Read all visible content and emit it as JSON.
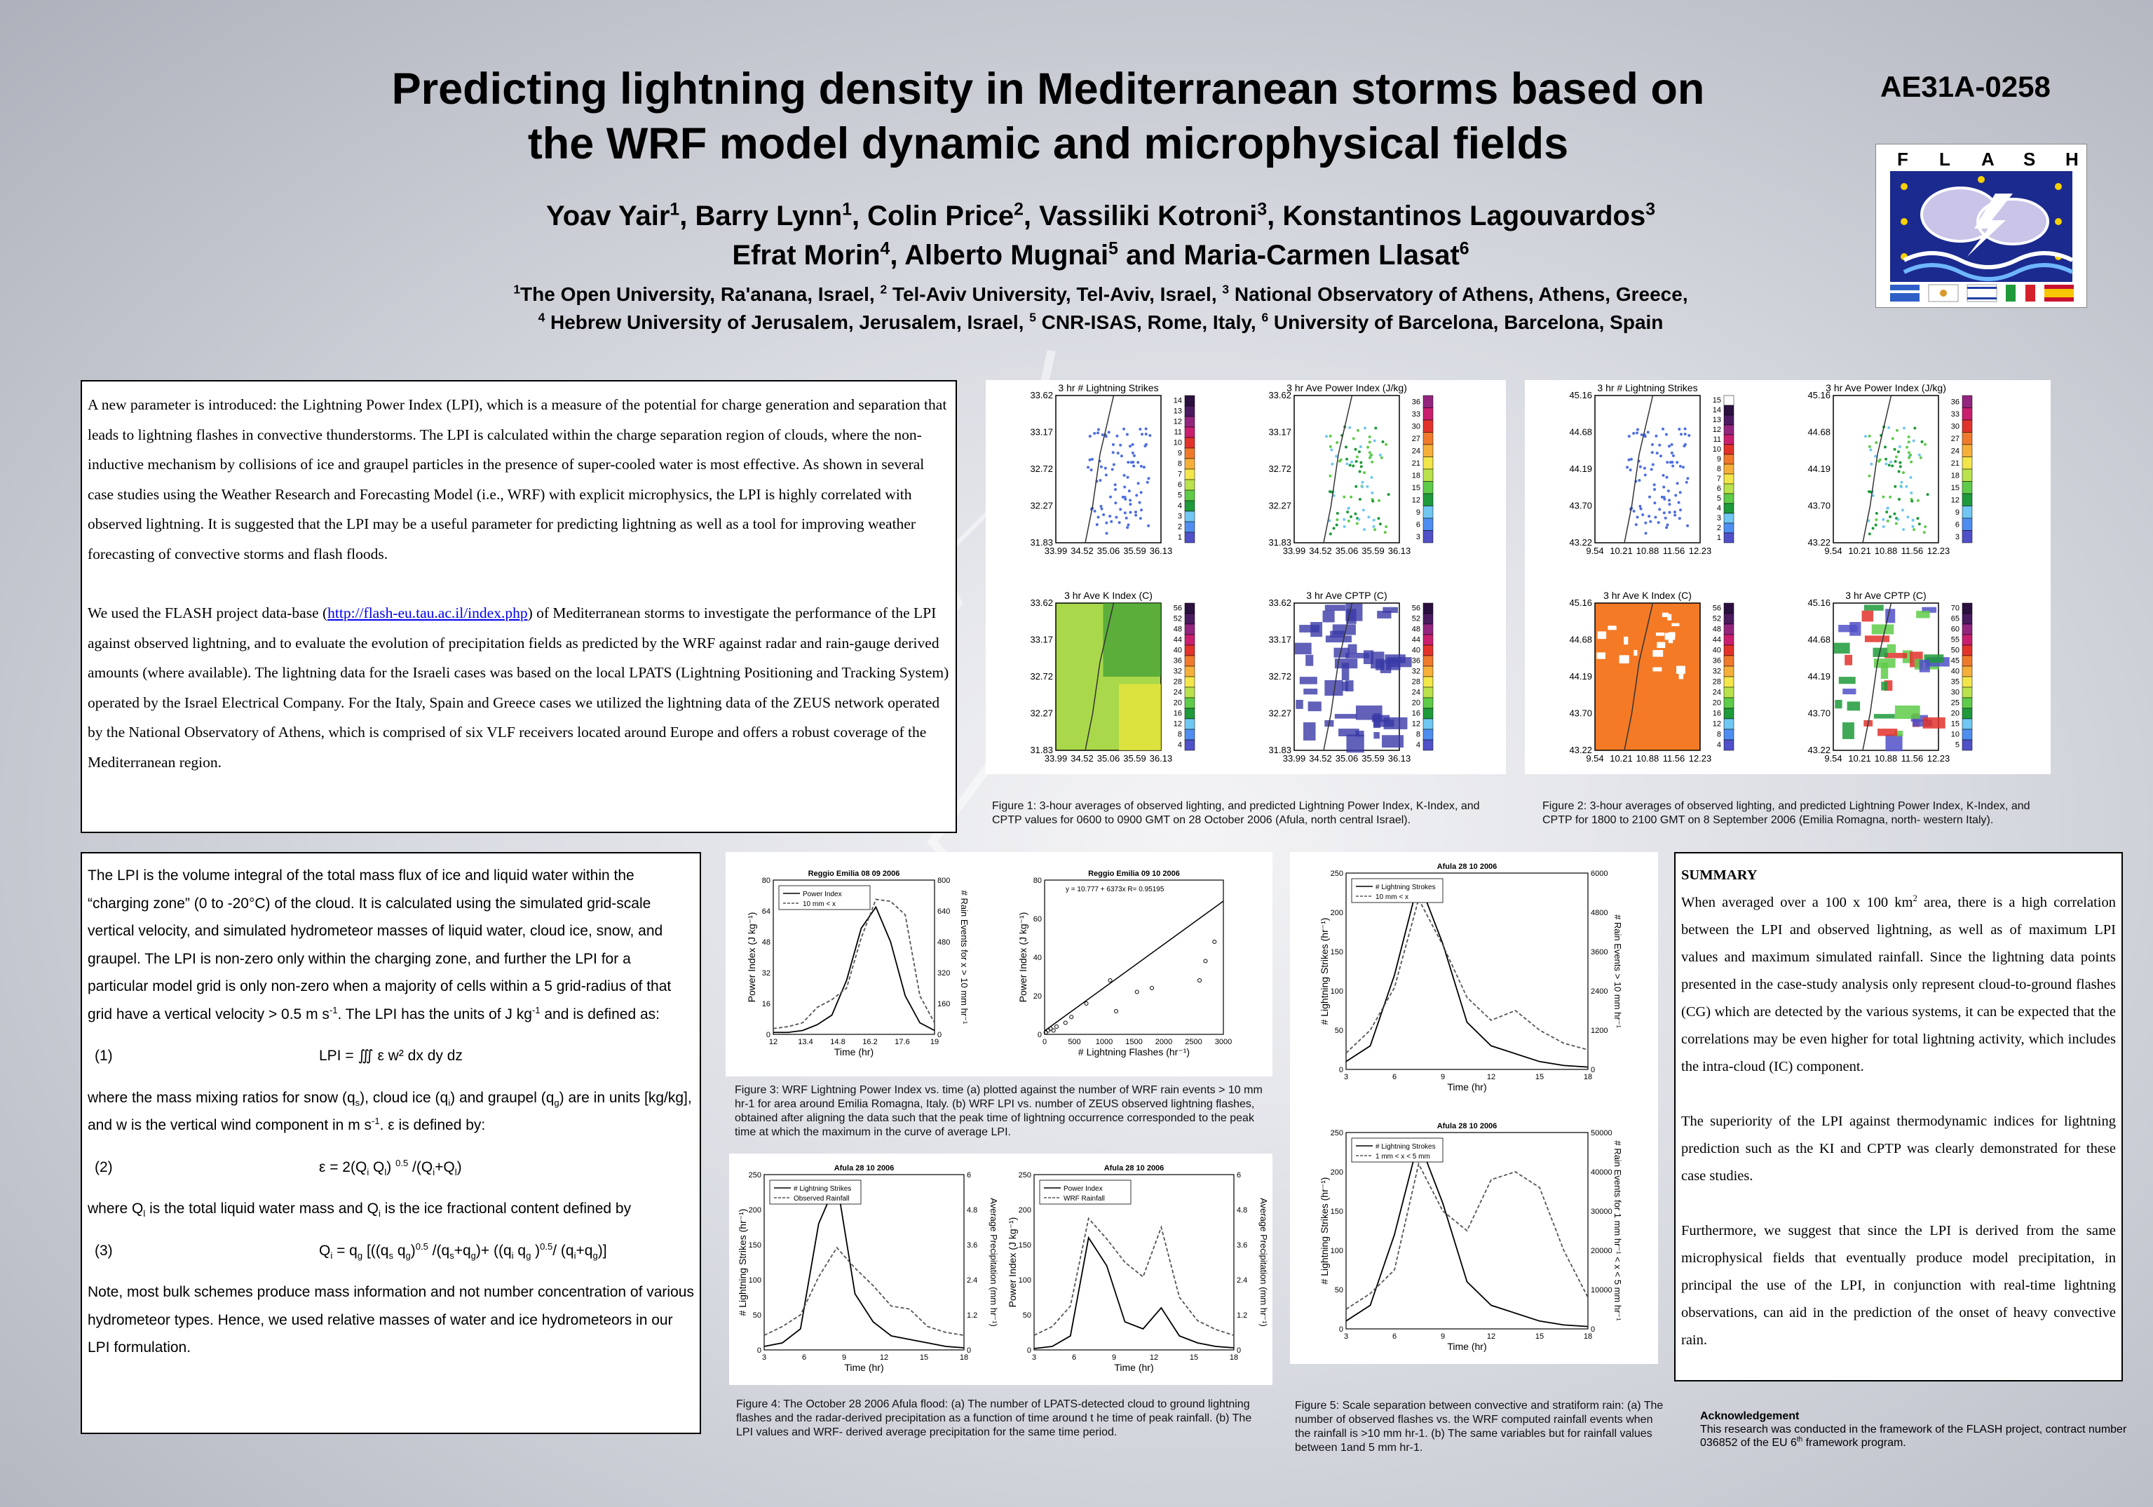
{
  "poster": {
    "title_l1": "Predicting lightning density in Mediterranean storms based on",
    "title_l2": "the WRF model dynamic and microphysical fields",
    "code": "AE31A-0258",
    "authors": [
      {
        "name": "Yoav Yair",
        "sup": "1",
        "sep": ", "
      },
      {
        "name": "Barry Lynn",
        "sup": "1",
        "sep": ", "
      },
      {
        "name": "Colin Price",
        "sup": "2",
        "sep": ", "
      },
      {
        "name": "Vassiliki Kotroni",
        "sup": "3",
        "sep": ", "
      },
      {
        "name": "Konstantinos Lagouvardos",
        "sup": "3",
        "sep": ""
      },
      {
        "name": "Efrat Morin",
        "sup": "4",
        "sep": ", "
      },
      {
        "name": "Alberto Mugnai",
        "sup": "5",
        "sep": " and "
      },
      {
        "name": "Maria-Carmen Llasat",
        "sup": "6",
        "sep": ""
      }
    ],
    "affil1": [
      {
        "sup": "1",
        "text": "The Open University, Ra'anana, Israel, "
      },
      {
        "sup": "2",
        "text": " Tel-Aviv University, Tel-Aviv, Israel, "
      },
      {
        "sup": "3",
        "text": " National Observatory of Athens, Athens, Greece,"
      }
    ],
    "affil2": [
      {
        "sup": "4",
        "text": " Hebrew University of Jerusalem, Jerusalem, Israel, "
      },
      {
        "sup": "5",
        "text": " CNR-ISAS, Rome, Italy, "
      },
      {
        "sup": "6",
        "text": " University of Barcelona, Barcelona, Spain"
      }
    ]
  },
  "logo": {
    "letters": [
      "F",
      "L",
      "A",
      "S",
      "H"
    ]
  },
  "intro": {
    "p1": "A new parameter is introduced: the Lightning Power Index (LPI), which is a measure of the potential for charge generation and separation that leads to lightning flashes in convective thunderstorms. The LPI is calculated within the charge separation region of clouds, where the non-inductive mechanism by collisions of ice and graupel particles in the presence of super-cooled water is most effective. As shown in several case studies using the Weather Research and Forecasting Model (i.e., WRF) with explicit microphysics, the LPI is highly correlated with observed lightning. It is suggested that the LPI may be a useful parameter for predicting lightning as well as a tool for improving weather forecasting of convective storms and flash floods.",
    "p2a": "We used the FLASH project data-base (",
    "link": "http://flash-eu.tau.ac.il/index.php",
    "p2b": ") of Mediterranean storms to investigate the performance of the LPI against observed lightning, and to evaluate the evolution of precipitation fields as predicted by the WRF against radar and rain-gauge derived amounts (where available). The lightning data for the Israeli cases was based on the local LPATS (Lightning Positioning and Tracking System) operated by the Israel Electrical Company. For the Italy, Spain and Greece cases we utilized the lightning data of the ZEUS network operated by the National Observatory of Athens, which is comprised of six VLF receivers located around Europe and offers a robust coverage of the Mediterranean region."
  },
  "lpi": {
    "p1": "The LPI is the volume integral of the total mass flux of ice and liquid water within the “charging zone” (0 to -20°C) of the cloud. It is calculated using the simulated grid-scale vertical velocity, and simulated hydrometeor masses of liquid water, cloud ice, snow, and graupel. The LPI is non-zero only within the charging zone, and further the LPI for a particular model grid is only non-zero when a majority of cells within a 5 grid-radius of that grid have a vertical velocity > 0.5 m s",
    "p1_sup": "-1",
    "p1_end": ".  The LPI has the units of J kg",
    "p1_end_sup": "-1",
    "p1_tail": " and is defined as:",
    "eq1_num": "(1)",
    "eq1": "LPI = ∭ ε w² dx dy dz",
    "p2": "where the mass mixing ratios for snow (q",
    "p2_s": "s",
    "p2_b": "), cloud ice (q",
    "p2_i": "i",
    "p2_c": ") and graupel (q",
    "p2_g": "g",
    "p2_d": ") are in units [kg/kg], and w is the vertical wind component in m s",
    "p2_sup": "-1",
    "p2_e": ".  ε is defined by:",
    "eq2_num": "(2)",
    "eq2": "ε =  2(Q",
    "eq2_r": "i",
    "eq2_b": " Q",
    "eq2_c": "l",
    "eq2_d": ") ",
    "eq2_sup": "0.5",
    "eq2_e": " /(Q",
    "eq2_f": "i",
    "eq2_g": "+Q",
    "eq2_h": "l",
    "eq2_i": ")",
    "p3": "where Q",
    "p3_a": "l",
    "p3_b": " is the total liquid water mass and Q",
    "p3_c": "i",
    "p3_d": "  is the ice fractional content defined by",
    "eq3_num": "(3)",
    "eq3": "Q",
    "eq3_a": "i",
    "eq3_b": "  = q",
    "eq3_c": "g",
    "eq3_d": " [((q",
    "eq3_e": "s",
    "eq3_f": " q",
    "eq3_g": "g",
    "eq3_h": ")",
    "eq3_i": "0.5",
    "eq3_j": " /(q",
    "eq3_k": "s",
    "eq3_l": "+q",
    "eq3_m": "g",
    "eq3_n": ")+ ((q",
    "eq3_o": "i",
    "eq3_p": " q",
    "eq3_q": "g",
    "eq3_r": " )",
    "eq3_s": "0.5",
    "eq3_t": "/ (q",
    "eq3_u": "i",
    "eq3_v": "+q",
    "eq3_w": "g",
    "eq3_x": ")]",
    "p4": "Note, most bulk schemes produce mass information and not number concentration of various hydrometeor types. Hence, we used relative masses of water and ice hydrometeors in our LPI formulation."
  },
  "summary": {
    "heading": "SUMMARY",
    "p1a": "When averaged over a 100 x 100 km",
    "p1_sup": "2",
    "p1b": " area, there is a high correlation between the LPI and observed lightning, as well as of maximum LPI values and maximum simulated rainfall. Since the lightning data points presented in the case-study analysis only represent cloud-to-ground flashes (CG) which are detected by the various systems, it can be expected that the correlations may be even higher for total lightning activity, which includes the intra-cloud (IC) component.",
    "p2": "The superiority of the LPI against thermodynamic indices for lightning prediction such as the KI and CPTP was clearly demonstrated for these case studies.",
    "p3": "Furthermore, we suggest that since the LPI is derived from the same microphysical fields that eventually produce model precipitation, in principal the use of the LPI, in conjunction with real-time lightning observations, can aid in the prediction of the onset of heavy convective rain."
  },
  "ack": {
    "heading": "Acknowledgement",
    "text_a": "This research was conducted in the framework of the FLASH project, contract number 036852  of the EU 6",
    "text_sup": "th",
    "text_b": " framework program."
  },
  "fig1": {
    "caption": "Figure 1: 3-hour averages of observed lighting, and predicted Lightning Power Index, K-Index, and CPTP values for 0600 to 0900 GMT on 28 October 2006 (Afula, north central Israel).",
    "xticks": [
      "33.99",
      "34.52",
      "35.06",
      "35.59",
      "36.13"
    ],
    "yticks": [
      "33.62",
      "33.17",
      "32.72",
      "32.27",
      "31.83"
    ],
    "panels": [
      {
        "title": "3 hr # Lightning Strikes",
        "cbar": [
          "14",
          "13",
          "12",
          "11",
          "10",
          "9",
          "8",
          "7",
          "6",
          "5",
          "4",
          "3",
          "2",
          "1"
        ]
      },
      {
        "title": "3 hr Ave Power Index (J/kg)",
        "cbar": [
          "36",
          "33",
          "30",
          "27",
          "24",
          "21",
          "18",
          "15",
          "12",
          "9",
          "6",
          "3"
        ]
      },
      {
        "title": "3 hr Ave K Index (C)",
        "cbar": [
          "56",
          "52",
          "48",
          "44",
          "40",
          "36",
          "32",
          "28",
          "24",
          "20",
          "16",
          "12",
          "8",
          "4"
        ]
      },
      {
        "title": "3 hr Ave CPTP (C)",
        "cbar": [
          "56",
          "52",
          "48",
          "44",
          "40",
          "36",
          "32",
          "28",
          "24",
          "20",
          "16",
          "12",
          "8",
          "4"
        ]
      }
    ]
  },
  "fig2": {
    "caption": "Figure 2: 3-hour averages of observed lighting, and predicted Lightning Power Index, K-Index, and CPTP for 1800 to 2100 GMT on 8 September  2006 (Emilia Romagna, north- western Italy).",
    "xticks": [
      "9.54",
      "10.21",
      "10.88",
      "11.56",
      "12.23"
    ],
    "yticks": [
      "45.16",
      "44.68",
      "44.19",
      "43.70",
      "43.22"
    ],
    "panels": [
      {
        "title": "3 hr # Lightning Strikes",
        "cbar": [
          "15",
          "14",
          "13",
          "12",
          "11",
          "10",
          "9",
          "8",
          "7",
          "6",
          "5",
          "4",
          "3",
          "2",
          "1"
        ]
      },
      {
        "title": "3 hr Ave Power Index (J/kg)",
        "cbar": [
          "36",
          "33",
          "30",
          "27",
          "24",
          "21",
          "18",
          "15",
          "12",
          "9",
          "6",
          "3"
        ]
      },
      {
        "title": "3 hr Ave K Index (C)",
        "cbar": [
          "56",
          "52",
          "48",
          "44",
          "40",
          "36",
          "32",
          "28",
          "24",
          "20",
          "16",
          "12",
          "8",
          "4"
        ]
      },
      {
        "title": "3 hr Ave CPTP (C)",
        "cbar": [
          "70",
          "65",
          "60",
          "55",
          "50",
          "45",
          "40",
          "35",
          "30",
          "25",
          "20",
          "15",
          "10",
          "5"
        ]
      }
    ]
  },
  "fig3": {
    "caption": "Figure 3: WRF Lightning Power Index vs. time (a) plotted against the number of WRF rain events > 10 mm hr-1 for area around Emilia Romagna, Italy. (b) WRF LPI vs. number of  ZEUS observed lightning flashes, obtained after aligning the data such that the peak time of lightning occurrence corresponded to the peak time at which the maximum in the curve of average LPI.",
    "a_title": "Reggio Emilia 08 09 2006",
    "a_xlabel": "Time (hr)",
    "a_ylabel": "Power Index (J kg⁻¹)",
    "a_y2label": "# Rain Events for x > 10 mm hr⁻¹",
    "a_legend1": "Power Index",
    "a_legend2": "10 mm < x",
    "b_title": "Reggio Emilia 09 10 2006",
    "b_xlabel": "# Lightning Flashes (hr⁻¹)",
    "b_ylabel": "Power Index (J kg⁻¹)",
    "b_fit": "y = 10.777 + 6373x   R= 0.95195"
  },
  "fig4": {
    "caption": "Figure 4:  The October 28 2006 Afula flood: (a) The number of  LPATS-detected cloud to ground lightning flashes and the radar-derived precipitation as a function of time around t he time of peak rainfall. (b) The LPI values and WRF- derived average precipitation for the same time period.",
    "a_title": "Afula 28 10 2006",
    "a_ylabel": "# Lightning Strikes (hr⁻¹)",
    "a_y2label": "Average Precipitation (mm hr⁻¹)",
    "a_legend1": "# Lightning Strikes",
    "a_legend2": "Observed Rainfall",
    "b_title": "Afula 28 10 2006",
    "b_ylabel": "Power Index (J kg⁻¹)",
    "b_y2label": "Average Precipitation (mm hr⁻¹)",
    "b_legend1": "Power Index",
    "b_legend2": "WRF Rainfall",
    "xlabel": "Time (hr)"
  },
  "fig5": {
    "caption": "Figure 5:  Scale separation between convective and  stratiform rain: (a) The number of observed flashes vs. the WRF computed rainfall events when the rainfall is >10 mm hr-1. (b) The same variables but for rainfall values between 1and 5 mm hr-1.",
    "a_title": "Afula 28 10 2006",
    "a_ylabel": "# Lightning Strikes (hr⁻¹)",
    "a_y2label": "# Rain Events > 10 mm hr⁻¹",
    "a_legend1": "# Lightning Strokes",
    "a_legend2": "10 mm < x",
    "b_title": "Afula 28 10 2006",
    "b_ylabel": "# Lightning Strikes (hr⁻¹)",
    "b_y2label": "# Rain Events for 1 mm hr⁻¹ < x < 5 mm hr⁻¹",
    "b_legend1": "# Lightning Strokes",
    "b_legend2": "1 mm < x < 5 mm",
    "xlabel": "Time (hr)"
  },
  "chart_data": [
    {
      "type": "line",
      "title": "Reggio Emilia 08 09 2006",
      "xlabel": "Time (hr)",
      "x": [
        12,
        13,
        14,
        15,
        15.5,
        16,
        16.5,
        17,
        17.5,
        18,
        18.5,
        19
      ],
      "xlim": [
        12,
        19
      ],
      "ylim": [
        0,
        80
      ],
      "y2lim": [
        0,
        800
      ],
      "series": [
        {
          "name": "Power Index",
          "values": [
            1,
            1,
            2,
            5,
            10,
            28,
            55,
            66,
            48,
            20,
            6,
            2
          ]
        },
        {
          "name": "10 mm < x",
          "values": [
            30,
            40,
            60,
            140,
            180,
            240,
            500,
            700,
            690,
            620,
            200,
            60
          ]
        }
      ]
    },
    {
      "type": "scatter",
      "title": "Reggio Emilia 09 10 2006",
      "xlabel": "# Lightning Flashes (hr⁻¹)",
      "xlim": [
        0,
        3000
      ],
      "ylim": [
        0,
        80
      ],
      "fit": "y = 10.777 + 6373x   R= 0.95195",
      "x": [
        20,
        60,
        100,
        150,
        200,
        350,
        450,
        700,
        1100,
        1200,
        1550,
        1800,
        2600,
        2700,
        2850
      ],
      "y": [
        1,
        2,
        3,
        2,
        4,
        6,
        9,
        16,
        28,
        12,
        22,
        24,
        28,
        38,
        48
      ]
    },
    {
      "type": "line",
      "title": "Afula 28 10 2006",
      "xlabel": "Time (hr)",
      "xlim": [
        3,
        18
      ],
      "ylim": [
        0,
        250
      ],
      "y2lim": [
        0,
        6
      ],
      "series": [
        {
          "name": "# Lightning Strikes",
          "values": [
            5,
            10,
            30,
            180,
            240,
            80,
            40,
            20,
            15,
            10,
            5,
            3
          ]
        },
        {
          "name": "Observed Rainfall",
          "values": [
            0.5,
            0.8,
            1.2,
            2.5,
            3.5,
            2.8,
            2.2,
            1.5,
            1.4,
            0.8,
            0.6,
            0.5
          ]
        }
      ]
    },
    {
      "type": "line",
      "title": "Afula 28 10 2006",
      "xlabel": "Time (hr)",
      "xlim": [
        3,
        18
      ],
      "ylim": [
        0,
        250
      ],
      "y2lim": [
        0,
        6
      ],
      "series": [
        {
          "name": "Power Index",
          "values": [
            2,
            5,
            20,
            160,
            120,
            40,
            30,
            60,
            20,
            10,
            5,
            3
          ]
        },
        {
          "name": "WRF Rainfall",
          "values": [
            0.5,
            0.8,
            1.5,
            4.5,
            3.8,
            3,
            2.5,
            4.2,
            1.8,
            1,
            0.7,
            0.5
          ]
        }
      ]
    },
    {
      "type": "line",
      "title": "Afula 28 10 2006",
      "xlabel": "Time (hr)",
      "xlim": [
        3,
        18
      ],
      "ylim": [
        0,
        250
      ],
      "y2lim": [
        0,
        6000
      ],
      "series": [
        {
          "name": "# Lightning Strokes",
          "values": [
            10,
            30,
            120,
            240,
            160,
            60,
            30,
            20,
            10,
            5,
            3
          ]
        },
        {
          "name": "10 mm < x",
          "values": [
            500,
            1200,
            2500,
            5200,
            3800,
            2200,
            1500,
            1800,
            1200,
            800,
            600
          ]
        }
      ]
    },
    {
      "type": "line",
      "title": "Afula 28 10 2006",
      "xlabel": "Time (hr)",
      "xlim": [
        3,
        18
      ],
      "ylim": [
        0,
        250
      ],
      "y2lim": [
        0,
        50000
      ],
      "series": [
        {
          "name": "# Lightning Strokes",
          "values": [
            10,
            30,
            120,
            240,
            160,
            60,
            30,
            20,
            10,
            5,
            3
          ]
        },
        {
          "name": "1 mm < x < 5 mm",
          "values": [
            5000,
            9000,
            15000,
            42000,
            30000,
            25000,
            38000,
            40000,
            36000,
            20000,
            8000
          ]
        }
      ]
    }
  ]
}
